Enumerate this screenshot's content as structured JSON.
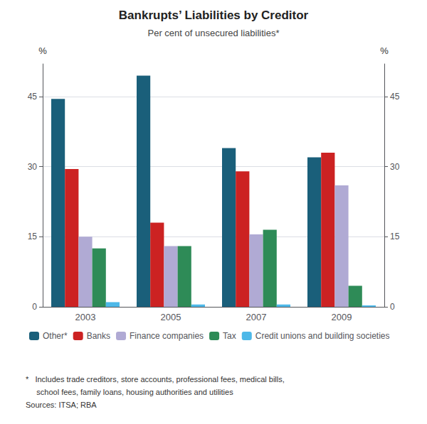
{
  "chart_data": {
    "type": "bar",
    "title": "Bankrupts’ Liabilities by Creditor",
    "subtitle": "Per cent of unsecured liabilities*",
    "categories": [
      "2003",
      "2005",
      "2007",
      "2009"
    ],
    "series": [
      {
        "name": "Other*",
        "color": "#1a5f7a",
        "values": [
          44.5,
          49.5,
          34.0,
          32.0
        ]
      },
      {
        "name": "Banks",
        "color": "#cc2222",
        "values": [
          29.5,
          18.0,
          29.0,
          33.0
        ]
      },
      {
        "name": "Finance companies",
        "color": "#b0aad4",
        "values": [
          15.0,
          13.0,
          15.5,
          26.0
        ]
      },
      {
        "name": "Tax",
        "color": "#2e8b57",
        "values": [
          12.5,
          13.0,
          16.5,
          4.5
        ]
      },
      {
        "name": "Credit unions and building societies",
        "color": "#4db8e8",
        "values": [
          1.0,
          0.5,
          0.5,
          0.3
        ]
      }
    ],
    "ylabel": "%",
    "y2label": "%",
    "ylim": [
      0,
      52
    ],
    "yticks": [
      0,
      15,
      30,
      45
    ],
    "y2lim": [
      0,
      52
    ],
    "y2ticks": [
      0,
      15,
      30,
      45
    ],
    "grid": true,
    "legend": "bottom",
    "annotations": [
      "*   Includes trade creditors, store accounts, professional fees, medical bills,",
      "     school fees, family loans, housing authorities and utilities",
      "Sources: ITSA; RBA"
    ]
  }
}
